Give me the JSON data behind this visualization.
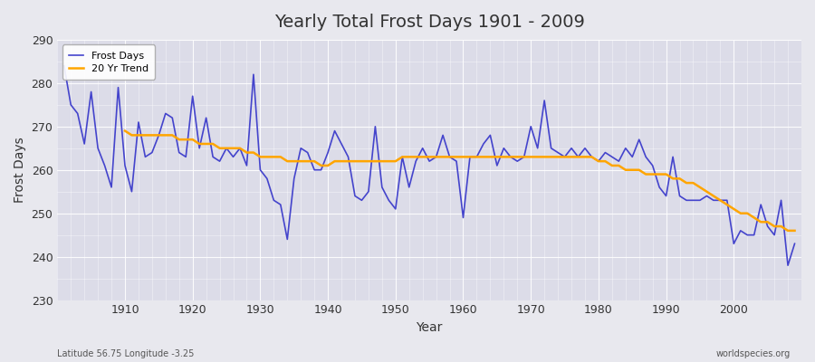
{
  "title": "Yearly Total Frost Days 1901 - 2009",
  "xlabel": "Year",
  "ylabel": "Frost Days",
  "footnote_left": "Latitude 56.75 Longitude -3.25",
  "footnote_right": "worldspecies.org",
  "legend_labels": [
    "Frost Days",
    "20 Yr Trend"
  ],
  "line_color": "#4444cc",
  "trend_color": "#FFA500",
  "bg_color": "#e8e8ee",
  "plot_bg_color": "#dcdce8",
  "ylim": [
    230,
    290
  ],
  "ytick_step": 10,
  "years": [
    1901,
    1902,
    1903,
    1904,
    1905,
    1906,
    1907,
    1908,
    1909,
    1910,
    1911,
    1912,
    1913,
    1914,
    1915,
    1916,
    1917,
    1918,
    1919,
    1920,
    1921,
    1922,
    1923,
    1924,
    1925,
    1926,
    1927,
    1928,
    1929,
    1930,
    1931,
    1932,
    1933,
    1934,
    1935,
    1936,
    1937,
    1938,
    1939,
    1940,
    1941,
    1942,
    1943,
    1944,
    1945,
    1946,
    1947,
    1948,
    1949,
    1950,
    1951,
    1952,
    1953,
    1954,
    1955,
    1956,
    1957,
    1958,
    1959,
    1960,
    1961,
    1962,
    1963,
    1964,
    1965,
    1966,
    1967,
    1968,
    1969,
    1970,
    1971,
    1972,
    1973,
    1974,
    1975,
    1976,
    1977,
    1978,
    1979,
    1980,
    1981,
    1982,
    1983,
    1984,
    1985,
    1986,
    1987,
    1988,
    1989,
    1990,
    1991,
    1992,
    1993,
    1994,
    1995,
    1996,
    1997,
    1998,
    1999,
    2000,
    2001,
    2002,
    2003,
    2004,
    2005,
    2006,
    2007,
    2008,
    2009
  ],
  "frost_days": [
    284,
    275,
    273,
    266,
    278,
    265,
    261,
    256,
    279,
    261,
    255,
    271,
    263,
    264,
    268,
    273,
    272,
    264,
    263,
    277,
    265,
    272,
    263,
    262,
    265,
    263,
    265,
    261,
    282,
    260,
    258,
    253,
    252,
    244,
    258,
    265,
    264,
    260,
    260,
    264,
    269,
    266,
    263,
    254,
    253,
    255,
    270,
    256,
    253,
    251,
    263,
    256,
    262,
    265,
    262,
    263,
    268,
    263,
    262,
    249,
    263,
    263,
    266,
    268,
    261,
    265,
    263,
    262,
    263,
    270,
    265,
    276,
    265,
    264,
    263,
    265,
    263,
    265,
    263,
    262,
    264,
    263,
    262,
    265,
    263,
    267,
    263,
    261,
    256,
    254,
    263,
    254,
    253,
    253,
    253,
    254,
    253,
    253,
    253,
    243,
    246,
    245,
    245,
    252,
    247,
    245,
    253,
    238,
    243
  ],
  "trend_years": [
    1910,
    1911,
    1912,
    1913,
    1914,
    1915,
    1916,
    1917,
    1918,
    1919,
    1920,
    1921,
    1922,
    1923,
    1924,
    1925,
    1926,
    1927,
    1928,
    1929,
    1930,
    1931,
    1932,
    1933,
    1934,
    1935,
    1936,
    1937,
    1938,
    1939,
    1940,
    1941,
    1942,
    1943,
    1944,
    1945,
    1946,
    1947,
    1948,
    1949,
    1950,
    1951,
    1952,
    1953,
    1954,
    1955,
    1956,
    1957,
    1958,
    1959,
    1960,
    1961,
    1962,
    1963,
    1964,
    1965,
    1966,
    1967,
    1968,
    1969,
    1970,
    1971,
    1972,
    1973,
    1974,
    1975,
    1976,
    1977,
    1978,
    1979,
    1980,
    1981,
    1982,
    1983,
    1984,
    1985,
    1986,
    1987,
    1988,
    1989,
    1990,
    1991,
    1992,
    1993,
    1994,
    1995,
    1996,
    1997,
    1998,
    1999,
    2000,
    2001,
    2002,
    2003,
    2004,
    2005,
    2006,
    2007,
    2008,
    2009
  ],
  "trend_values": [
    269,
    268,
    268,
    268,
    268,
    268,
    268,
    268,
    267,
    267,
    267,
    266,
    266,
    266,
    265,
    265,
    265,
    265,
    264,
    264,
    263,
    263,
    263,
    263,
    262,
    262,
    262,
    262,
    262,
    261,
    261,
    262,
    262,
    262,
    262,
    262,
    262,
    262,
    262,
    262,
    262,
    263,
    263,
    263,
    263,
    263,
    263,
    263,
    263,
    263,
    263,
    263,
    263,
    263,
    263,
    263,
    263,
    263,
    263,
    263,
    263,
    263,
    263,
    263,
    263,
    263,
    263,
    263,
    263,
    263,
    262,
    262,
    261,
    261,
    260,
    260,
    260,
    259,
    259,
    259,
    259,
    258,
    258,
    257,
    257,
    256,
    255,
    254,
    253,
    252,
    251,
    250,
    250,
    249,
    248,
    248,
    247,
    247,
    246,
    246
  ]
}
